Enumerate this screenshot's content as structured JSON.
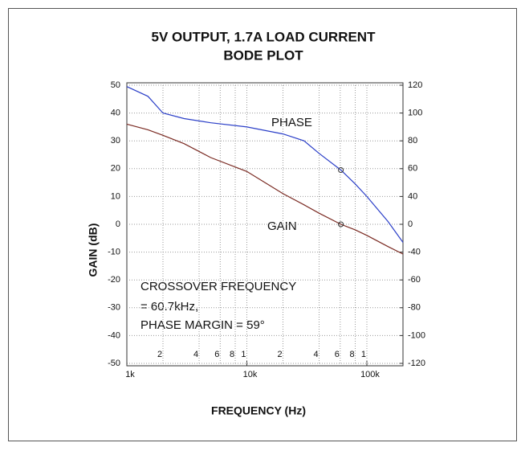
{
  "chart_data": {
    "type": "line",
    "title": [
      "5V OUTPUT, 1.7A LOAD CURRENT",
      "BODE PLOT"
    ],
    "xlabel": "FREQUENCY (Hz)",
    "ylabel": "GAIN (dB)",
    "xscale": "log",
    "xlim": [
      1000,
      200000
    ],
    "xticks": [
      {
        "value": 1000,
        "label": "1k"
      },
      {
        "value": 10000,
        "label": "10k"
      },
      {
        "value": 100000,
        "label": "100k"
      }
    ],
    "x_minor_ticks": [
      {
        "value": 2000,
        "label": "2"
      },
      {
        "value": 4000,
        "label": "4"
      },
      {
        "value": 6000,
        "label": "6"
      },
      {
        "value": 8000,
        "label": "8"
      },
      {
        "value": 10000,
        "label": "1"
      },
      {
        "value": 20000,
        "label": "2"
      },
      {
        "value": 40000,
        "label": "4"
      },
      {
        "value": 60000,
        "label": "6"
      },
      {
        "value": 80000,
        "label": "8"
      },
      {
        "value": 100000,
        "label": "1"
      }
    ],
    "ylim": [
      -50,
      50
    ],
    "yticks": [
      50,
      40,
      30,
      20,
      10,
      0,
      -10,
      -20,
      -30,
      -40,
      -50
    ],
    "y2lim": [
      -80,
      120
    ],
    "y2ticks": [
      120,
      100,
      80,
      60,
      40,
      {
        "value": 20,
        "label": "0"
      },
      {
        "value": 0,
        "label": "-40"
      },
      {
        "value": -20,
        "label": "-60"
      },
      {
        "value": -40,
        "label": "-80"
      },
      {
        "value": -60,
        "label": "-100"
      },
      {
        "value": -80,
        "label": "-120"
      }
    ],
    "grid": true,
    "x": [
      1000,
      1500,
      2000,
      3000,
      5000,
      10000,
      20000,
      30000,
      40000,
      60700,
      80000,
      100000,
      150000,
      200000
    ],
    "series": [
      {
        "name": "PHASE",
        "color": "#2b3fc8",
        "axis": "y2",
        "values": [
          119,
          112,
          100,
          96,
          93,
          90,
          85,
          80,
          71,
          59,
          49,
          40,
          22,
          7
        ]
      },
      {
        "name": "GAIN",
        "color": "#7a2a22",
        "axis": "y",
        "values": [
          36,
          34,
          32,
          29,
          24,
          19,
          11,
          7,
          4,
          0,
          -2,
          -4,
          -8,
          -10.7
        ]
      }
    ],
    "crossover": {
      "x": 60700,
      "gain": 0,
      "phase": 59
    },
    "annotations": [
      "CROSSOVER  FREQUENCY",
      "= 60.7kHz,",
      "PHASE MARGIN = 59°"
    ]
  }
}
